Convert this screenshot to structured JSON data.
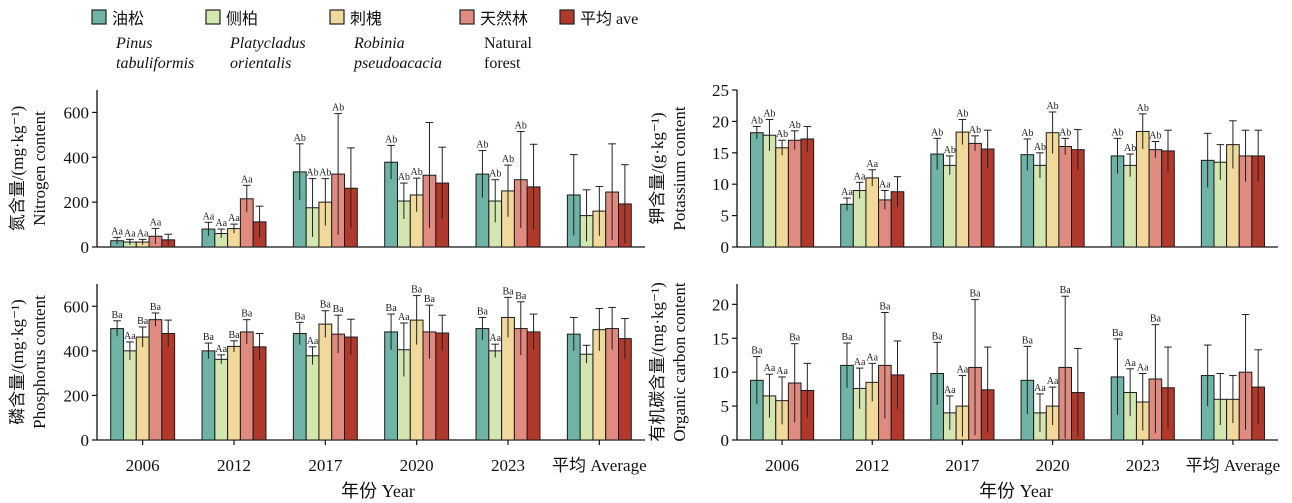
{
  "legend": [
    {
      "cn": "油松",
      "en1": "Pinus",
      "en2": "tabuliformis",
      "italic": true,
      "color": "#6fb2a6"
    },
    {
      "cn": "侧柏",
      "en1": "Platycladus",
      "en2": "orientalis",
      "italic": true,
      "color": "#d4e6b0"
    },
    {
      "cn": "刺槐",
      "en1": "Robinia",
      "en2": "pseudoacacia",
      "italic": true,
      "color": "#f0d99a"
    },
    {
      "cn": "天然林",
      "en1": "Natural",
      "en2": "forest",
      "italic": false,
      "color": "#e08a80"
    },
    {
      "cn": "平均 ave",
      "en1": "",
      "en2": "",
      "italic": false,
      "color": "#b0392c"
    }
  ],
  "x_axis_title_left": "年份 Year",
  "x_axis_title_right": "年份 Year",
  "chart_data": [
    {
      "type": "bar",
      "id": "nitrogen",
      "ylabel_cn": "氮含量/(mg·kg⁻¹)",
      "ylabel_en": "Nitrogen content",
      "categories": [
        "2006",
        "2012",
        "2017",
        "2020",
        "2023",
        "平均 Average"
      ],
      "ylim": [
        0,
        700
      ],
      "yticks": [
        0,
        200,
        400,
        600
      ],
      "series": [
        {
          "name": "油松 Pinus tabuliformis",
          "values": [
            28,
            80,
            335,
            378,
            325,
            232
          ],
          "err": [
            15,
            30,
            125,
            75,
            105,
            180
          ],
          "labels": [
            "Aa",
            "Aa",
            "Ab",
            "Ab",
            "Ab",
            ""
          ]
        },
        {
          "name": "侧柏 Platycladus orientalis",
          "values": [
            22,
            60,
            175,
            205,
            205,
            140
          ],
          "err": [
            12,
            20,
            130,
            80,
            95,
            115
          ],
          "labels": [
            "Aa",
            "Aa",
            "Ab",
            "Ab",
            "Ab",
            ""
          ]
        },
        {
          "name": "刺槐 Robinia pseudoacacia",
          "values": [
            22,
            82,
            200,
            232,
            250,
            160
          ],
          "err": [
            12,
            20,
            105,
            75,
            115,
            110
          ],
          "labels": [
            "Aa",
            "Aa",
            "Ab",
            "Ab",
            "Ab",
            ""
          ]
        },
        {
          "name": "天然林 Natural forest",
          "values": [
            48,
            215,
            325,
            320,
            300,
            245
          ],
          "err": [
            35,
            60,
            270,
            235,
            215,
            215
          ],
          "labels": [
            "Aa",
            "Aa",
            "Ab",
            "",
            "Ab",
            ""
          ]
        },
        {
          "name": "平均 ave",
          "values": [
            32,
            112,
            262,
            285,
            268,
            192
          ],
          "err": [
            25,
            70,
            180,
            160,
            190,
            175
          ],
          "labels": [
            "",
            "",
            "",
            "",
            "",
            ""
          ]
        }
      ]
    },
    {
      "type": "bar",
      "id": "potassium",
      "ylabel_cn": "钾含量/(g·kg⁻¹)",
      "ylabel_en": "Potassium content",
      "categories": [
        "2006",
        "2012",
        "2017",
        "2020",
        "2023",
        "平均 Average"
      ],
      "ylim": [
        0,
        25
      ],
      "yticks": [
        0,
        5,
        10,
        15,
        20,
        25
      ],
      "series": [
        {
          "name": "油松 Pinus tabuliformis",
          "values": [
            18.2,
            6.8,
            14.8,
            14.7,
            14.5,
            13.8
          ],
          "err": [
            1.0,
            1.0,
            2.5,
            2.5,
            2.8,
            4.3
          ],
          "labels": [
            "Ab",
            "Aa",
            "Ab",
            "Ab",
            "Ab",
            ""
          ]
        },
        {
          "name": "侧柏 Platycladus orientalis",
          "values": [
            17.8,
            9.0,
            13.0,
            13.0,
            13.0,
            13.5
          ],
          "err": [
            2.5,
            1.3,
            1.5,
            2.0,
            1.8,
            2.8
          ],
          "labels": [
            "Ab",
            "Aa",
            "Ab",
            "Ab",
            "Ab",
            ""
          ]
        },
        {
          "name": "刺槐 Robinia pseudoacacia",
          "values": [
            15.8,
            11.0,
            18.3,
            18.2,
            18.4,
            16.3
          ],
          "err": [
            1.2,
            1.3,
            2.0,
            3.3,
            2.8,
            3.8
          ],
          "labels": [
            "Ab",
            "Aa",
            "Ab",
            "Ab",
            "Ab",
            ""
          ]
        },
        {
          "name": "天然林 Natural forest",
          "values": [
            17.0,
            7.5,
            16.5,
            16.0,
            15.5,
            14.5
          ],
          "err": [
            1.5,
            1.5,
            1.2,
            1.3,
            1.3,
            4.1
          ],
          "labels": [
            "Ab",
            "Aa",
            "Ab",
            "Ab",
            "Ab",
            ""
          ]
        },
        {
          "name": "平均 ave",
          "values": [
            17.2,
            8.8,
            15.6,
            15.5,
            15.3,
            14.5
          ],
          "err": [
            2.0,
            2.4,
            3.0,
            3.2,
            3.3,
            4.1
          ],
          "labels": [
            "",
            "",
            "",
            "",
            "",
            ""
          ]
        }
      ]
    },
    {
      "type": "bar",
      "id": "phosphorus",
      "ylabel_cn": "磷含量/(mg·kg⁻¹)",
      "ylabel_en": "Phosphorus content",
      "categories": [
        "2006",
        "2012",
        "2017",
        "2020",
        "2023",
        "平均 Average"
      ],
      "ylim": [
        0,
        700
      ],
      "yticks": [
        0,
        200,
        400,
        600
      ],
      "series": [
        {
          "name": "油松 Pinus tabuliformis",
          "values": [
            500,
            400,
            478,
            485,
            500,
            475
          ],
          "err": [
            35,
            35,
            50,
            80,
            50,
            75
          ],
          "labels": [
            "Ba",
            "Ba",
            "Ba",
            "Ba",
            "Ba",
            ""
          ]
        },
        {
          "name": "侧柏 Platycladus orientalis",
          "values": [
            400,
            362,
            378,
            405,
            400,
            385
          ],
          "err": [
            40,
            20,
            40,
            120,
            30,
            40
          ],
          "labels": [
            "Aa",
            "Aa",
            "Aa",
            "Aa",
            "Aa",
            ""
          ]
        },
        {
          "name": "刺槐 Robinia pseudoacacia",
          "values": [
            462,
            420,
            520,
            538,
            550,
            495
          ],
          "err": [
            45,
            25,
            60,
            110,
            90,
            95
          ],
          "labels": [
            "Ba",
            "Ba",
            "Ba",
            "Ba",
            "Ba",
            ""
          ]
        },
        {
          "name": "天然林 Natural forest",
          "values": [
            540,
            485,
            475,
            485,
            500,
            500
          ],
          "err": [
            30,
            55,
            85,
            120,
            120,
            95
          ],
          "labels": [
            "Ba",
            "Ba",
            "Ba",
            "Ba",
            "Ba",
            ""
          ]
        },
        {
          "name": "平均 ave",
          "values": [
            478,
            418,
            462,
            480,
            485,
            455
          ],
          "err": [
            60,
            60,
            80,
            80,
            80,
            90
          ],
          "labels": [
            "",
            "",
            "",
            "",
            "",
            ""
          ]
        }
      ]
    },
    {
      "type": "bar",
      "id": "organic_carbon",
      "ylabel_cn": "有机碳含量/(mg·kg⁻¹)",
      "ylabel_en": "Organic carbon content",
      "categories": [
        "2006",
        "2012",
        "2017",
        "2020",
        "2023",
        "平均 Average"
      ],
      "ylim": [
        0,
        23
      ],
      "yticks": [
        0,
        5,
        10,
        15,
        20
      ],
      "series": [
        {
          "name": "油松 Pinus tabuliformis",
          "values": [
            8.8,
            11.0,
            9.8,
            8.8,
            9.3,
            9.5
          ],
          "err": [
            3.5,
            3.3,
            4.6,
            5.0,
            5.6,
            4.5
          ],
          "labels": [
            "Ba",
            "Ba",
            "Ba",
            "Ba",
            "Ba",
            ""
          ]
        },
        {
          "name": "侧柏 Platycladus orientalis",
          "values": [
            6.5,
            7.6,
            4.0,
            4.0,
            7.0,
            6.0
          ],
          "err": [
            3.2,
            3.0,
            2.5,
            2.8,
            3.5,
            3.8
          ],
          "labels": [
            "Aa",
            "Aa",
            "Aa",
            "Aa",
            "Aa",
            ""
          ]
        },
        {
          "name": "刺槐 Robinia pseudoacacia",
          "values": [
            5.8,
            8.5,
            5.0,
            5.0,
            5.6,
            6.0
          ],
          "err": [
            3.5,
            2.8,
            4.5,
            2.8,
            4.2,
            3.5
          ],
          "labels": [
            "Aa",
            "Aa",
            "Aa",
            "Aa",
            "Aa",
            ""
          ]
        },
        {
          "name": "天然林 Natural forest",
          "values": [
            8.4,
            11.0,
            10.7,
            10.7,
            9.0,
            10.0
          ],
          "err": [
            5.8,
            7.8,
            10.0,
            10.5,
            8.0,
            8.5
          ],
          "labels": [
            "Ba",
            "Ba",
            "Ba",
            "Ba",
            "Ba",
            ""
          ]
        },
        {
          "name": "平均 ave",
          "values": [
            7.3,
            9.6,
            7.4,
            7.0,
            7.7,
            7.8
          ],
          "err": [
            4.0,
            5.0,
            6.3,
            6.5,
            6.0,
            5.5
          ],
          "labels": [
            "",
            "",
            "",
            "",
            "",
            ""
          ]
        }
      ]
    }
  ]
}
